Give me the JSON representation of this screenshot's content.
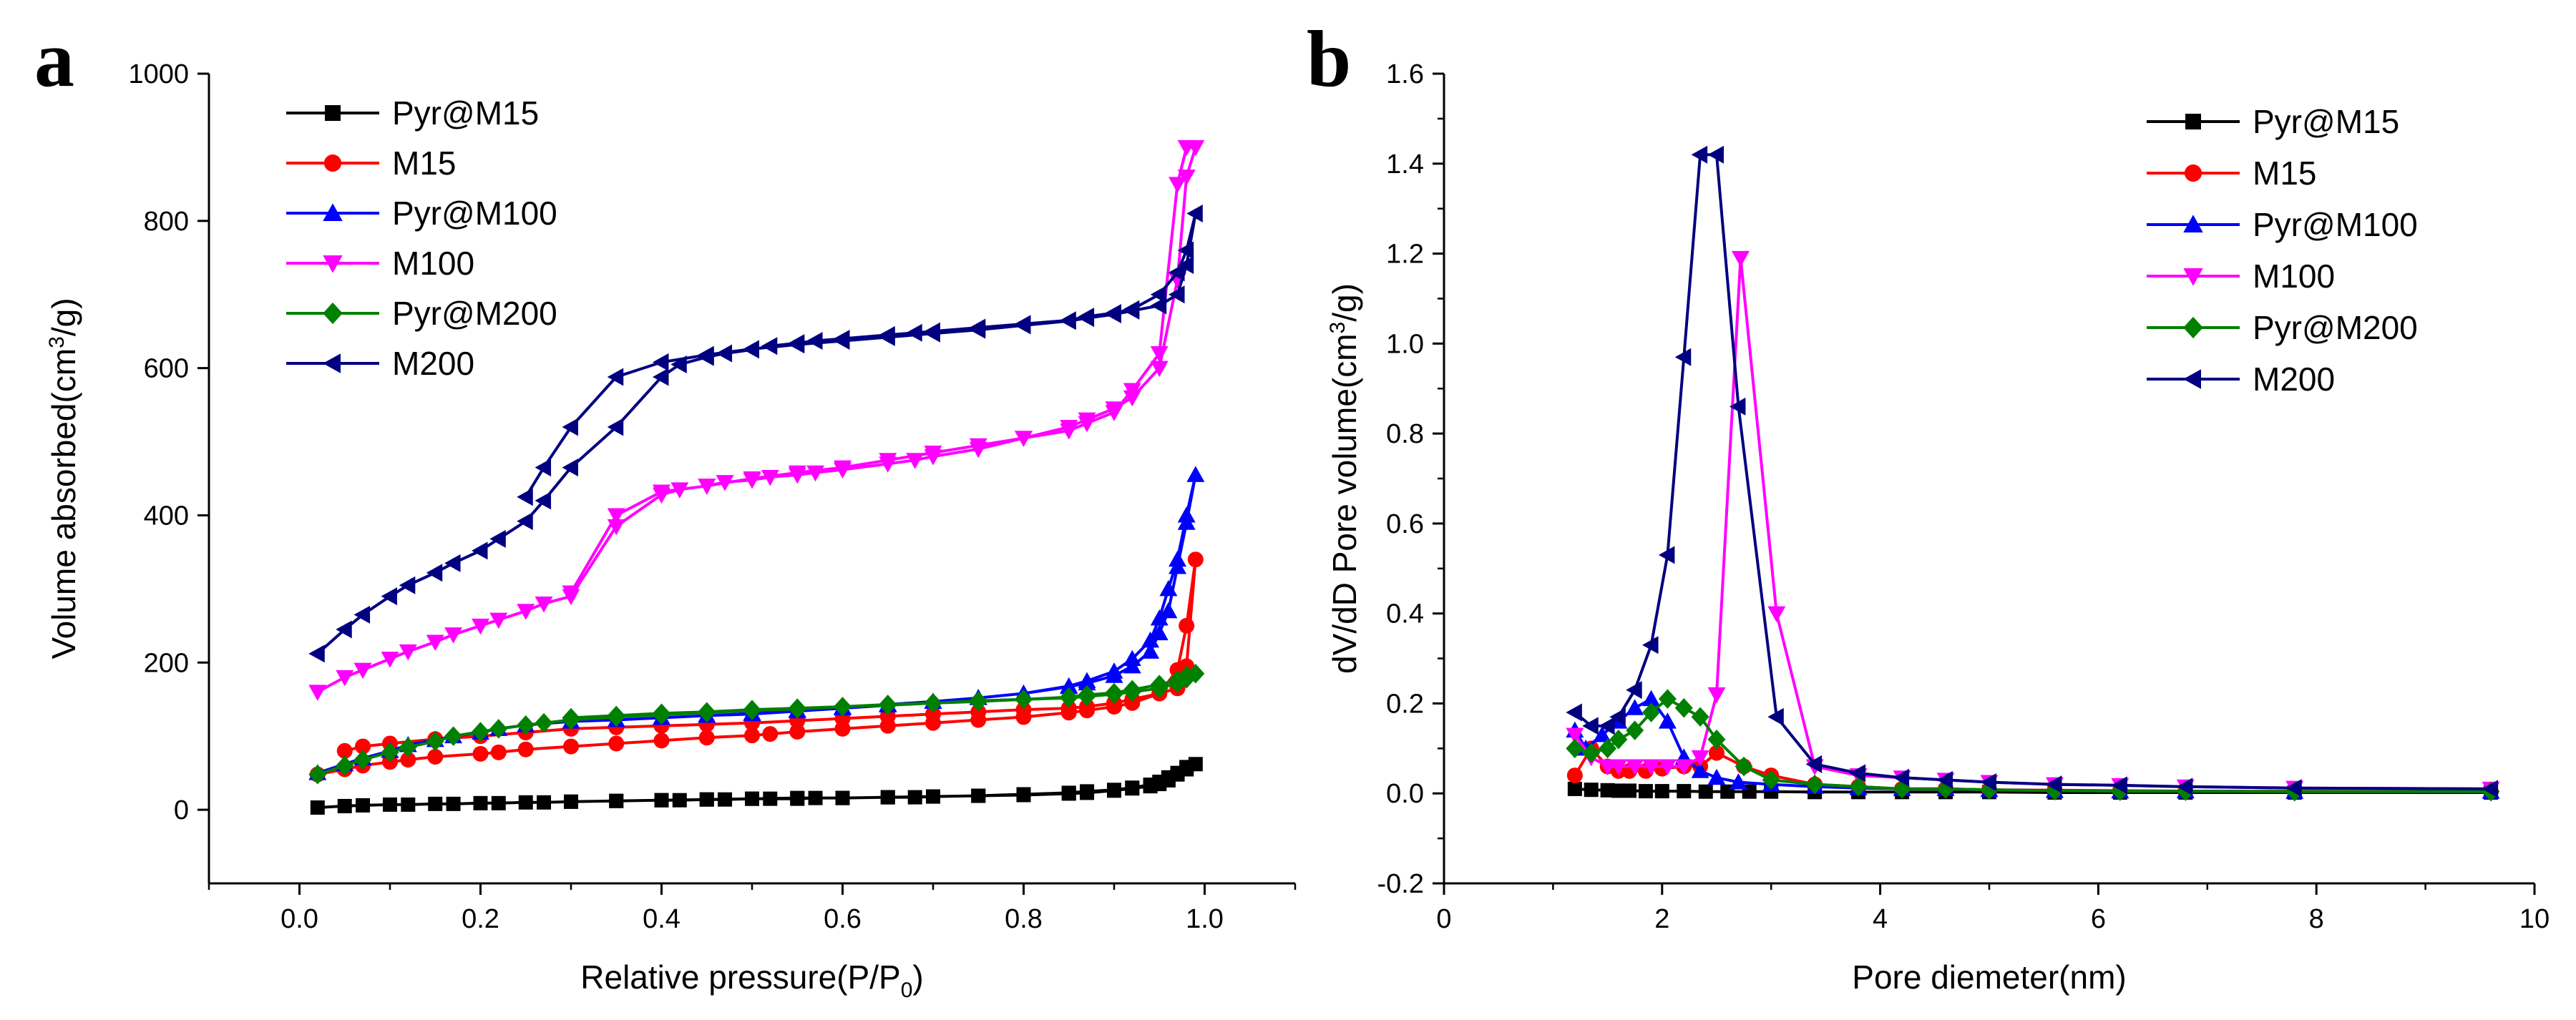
{
  "chart_data": [
    {
      "type": "line",
      "panel_label": "a",
      "title": "",
      "xlabel": "Relative pressure(P/P",
      "xlabel_sub": "0",
      "xlabel_tail": ")",
      "ylabel": "Volume absorbed(cm",
      "ylabel_sup": "3",
      "ylabel_tail": "/g)",
      "xlim": [
        -0.1,
        1.1
      ],
      "ylim": [
        -100,
        1000
      ],
      "xticks": [
        0.0,
        0.2,
        0.4,
        0.6,
        0.8,
        1.0
      ],
      "xtick_labels": [
        "0.0",
        "0.2",
        "0.4",
        "0.6",
        "0.8",
        "1.0"
      ],
      "yticks": [
        0,
        200,
        400,
        600,
        800,
        1000
      ],
      "ytick_labels": [
        "0",
        "200",
        "400",
        "600",
        "800",
        "1000"
      ],
      "legend_position": "top-left",
      "series": [
        {
          "name": "Pyr@M15",
          "color": "#000000",
          "marker": "square",
          "x": [
            0.02,
            0.05,
            0.07,
            0.1,
            0.12,
            0.15,
            0.17,
            0.2,
            0.22,
            0.25,
            0.27,
            0.3,
            0.35,
            0.4,
            0.42,
            0.45,
            0.47,
            0.5,
            0.52,
            0.55,
            0.57,
            0.6,
            0.65,
            0.68,
            0.7,
            0.75,
            0.8,
            0.85,
            0.87,
            0.9,
            0.92,
            0.94,
            0.95,
            0.96,
            0.97,
            0.98,
            0.99,
            0.98,
            0.97,
            0.96,
            0.95,
            0.94,
            0.92,
            0.9,
            0.87,
            0.85,
            0.8,
            0.75,
            0.7,
            0.65,
            0.6,
            0.55,
            0.5,
            0.45,
            0.4,
            0.35,
            0.3
          ],
          "y": [
            3,
            5,
            6,
            7,
            7,
            8,
            8,
            9,
            9,
            10,
            10,
            11,
            12,
            13,
            13,
            14,
            14,
            15,
            15,
            15,
            16,
            16,
            17,
            17,
            18,
            19,
            20,
            22,
            23,
            26,
            29,
            32,
            35,
            40,
            48,
            55,
            62,
            58,
            50,
            44,
            38,
            34,
            30,
            27,
            25,
            23,
            21,
            19,
            18,
            17,
            16,
            16,
            15,
            14,
            13,
            12,
            11
          ]
        },
        {
          "name": "M15",
          "color": "#ff0000",
          "marker": "circle",
          "x": [
            0.02,
            0.05,
            0.07,
            0.1,
            0.12,
            0.15,
            0.2,
            0.22,
            0.25,
            0.3,
            0.35,
            0.4,
            0.45,
            0.5,
            0.52,
            0.55,
            0.6,
            0.65,
            0.7,
            0.75,
            0.8,
            0.85,
            0.87,
            0.9,
            0.92,
            0.95,
            0.97,
            0.98,
            0.99,
            0.98,
            0.97,
            0.95,
            0.92,
            0.9,
            0.87,
            0.85,
            0.8,
            0.75,
            0.7,
            0.65,
            0.6,
            0.55,
            0.5,
            0.45,
            0.4,
            0.35,
            0.3,
            0.25,
            0.2,
            0.15,
            0.1,
            0.07,
            0.05
          ],
          "y": [
            48,
            55,
            60,
            65,
            68,
            72,
            76,
            78,
            82,
            86,
            90,
            94,
            98,
            101,
            103,
            106,
            110,
            114,
            118,
            122,
            126,
            132,
            135,
            140,
            145,
            158,
            190,
            250,
            340,
            195,
            165,
            158,
            150,
            145,
            140,
            138,
            136,
            133,
            130,
            127,
            124,
            121,
            118,
            116,
            114,
            112,
            110,
            105,
            100,
            96,
            90,
            86,
            80
          ]
        },
        {
          "name": "Pyr@M100",
          "color": "#0000ff",
          "marker": "triangle-up",
          "x": [
            0.02,
            0.05,
            0.07,
            0.1,
            0.12,
            0.15,
            0.17,
            0.2,
            0.22,
            0.25,
            0.3,
            0.35,
            0.4,
            0.45,
            0.5,
            0.55,
            0.6,
            0.65,
            0.7,
            0.75,
            0.8,
            0.85,
            0.87,
            0.9,
            0.92,
            0.94,
            0.95,
            0.96,
            0.97,
            0.98,
            0.99,
            0.98,
            0.97,
            0.96,
            0.95,
            0.94,
            0.92,
            0.9,
            0.87,
            0.85,
            0.8,
            0.75,
            0.7,
            0.65,
            0.6,
            0.55,
            0.5,
            0.45,
            0.4
          ],
          "y": [
            50,
            62,
            70,
            80,
            88,
            95,
            100,
            105,
            110,
            115,
            120,
            122,
            125,
            128,
            130,
            134,
            138,
            142,
            147,
            152,
            158,
            168,
            175,
            188,
            205,
            230,
            260,
            300,
            340,
            400,
            455,
            390,
            330,
            270,
            240,
            215,
            195,
            182,
            172,
            167,
            158,
            152,
            147,
            143,
            139,
            135,
            131,
            128,
            125
          ]
        },
        {
          "name": "M100",
          "color": "#ff00ff",
          "marker": "triangle-down",
          "x": [
            0.02,
            0.05,
            0.07,
            0.1,
            0.12,
            0.15,
            0.17,
            0.2,
            0.22,
            0.25,
            0.27,
            0.3,
            0.35,
            0.4,
            0.42,
            0.45,
            0.47,
            0.5,
            0.52,
            0.55,
            0.57,
            0.6,
            0.65,
            0.68,
            0.7,
            0.75,
            0.8,
            0.85,
            0.87,
            0.9,
            0.92,
            0.95,
            0.97,
            0.98,
            0.99,
            0.98,
            0.97,
            0.95,
            0.92,
            0.9,
            0.87,
            0.85,
            0.8,
            0.75,
            0.7,
            0.65,
            0.6,
            0.55,
            0.5,
            0.45,
            0.4,
            0.35,
            0.3
          ],
          "y": [
            160,
            180,
            190,
            205,
            215,
            228,
            238,
            250,
            258,
            270,
            280,
            290,
            385,
            428,
            435,
            440,
            445,
            448,
            452,
            455,
            458,
            462,
            470,
            475,
            480,
            490,
            505,
            520,
            530,
            545,
            560,
            600,
            720,
            860,
            900,
            900,
            850,
            620,
            570,
            540,
            525,
            515,
            505,
            495,
            485,
            475,
            465,
            458,
            450,
            440,
            432,
            400,
            295
          ]
        },
        {
          "name": "Pyr@M200",
          "color": "#008000",
          "marker": "diamond",
          "x": [
            0.02,
            0.05,
            0.07,
            0.1,
            0.12,
            0.15,
            0.17,
            0.2,
            0.22,
            0.25,
            0.27,
            0.3,
            0.35,
            0.4,
            0.45,
            0.5,
            0.55,
            0.6,
            0.65,
            0.7,
            0.75,
            0.8,
            0.85,
            0.87,
            0.9,
            0.92,
            0.95,
            0.97,
            0.98,
            0.99,
            0.98,
            0.97,
            0.95,
            0.92,
            0.9,
            0.87,
            0.85,
            0.8,
            0.75,
            0.7,
            0.65,
            0.6,
            0.55,
            0.5,
            0.45,
            0.4,
            0.35,
            0.3
          ],
          "y": [
            48,
            60,
            68,
            78,
            85,
            93,
            100,
            106,
            110,
            115,
            118,
            122,
            126,
            129,
            132,
            135,
            137,
            140,
            142,
            145,
            147,
            150,
            152,
            154,
            157,
            160,
            165,
            172,
            178,
            185,
            182,
            176,
            170,
            163,
            159,
            156,
            153,
            150,
            148,
            145,
            143,
            140,
            138,
            136,
            133,
            131,
            128,
            125
          ]
        },
        {
          "name": "M200",
          "color": "#000080",
          "marker": "triangle-left",
          "x": [
            0.02,
            0.05,
            0.07,
            0.1,
            0.12,
            0.15,
            0.17,
            0.2,
            0.22,
            0.25,
            0.27,
            0.3,
            0.35,
            0.4,
            0.42,
            0.45,
            0.47,
            0.5,
            0.52,
            0.55,
            0.57,
            0.6,
            0.65,
            0.68,
            0.7,
            0.75,
            0.8,
            0.85,
            0.87,
            0.9,
            0.92,
            0.95,
            0.97,
            0.98,
            0.99,
            0.98,
            0.97,
            0.95,
            0.92,
            0.9,
            0.87,
            0.85,
            0.8,
            0.75,
            0.7,
            0.65,
            0.6,
            0.55,
            0.5,
            0.45,
            0.4,
            0.35,
            0.3,
            0.27,
            0.25
          ],
          "y": [
            212,
            245,
            265,
            290,
            305,
            322,
            335,
            352,
            368,
            392,
            420,
            465,
            520,
            588,
            605,
            615,
            620,
            625,
            630,
            634,
            637,
            640,
            645,
            648,
            650,
            655,
            660,
            665,
            670,
            675,
            680,
            700,
            730,
            760,
            810,
            740,
            700,
            685,
            678,
            673,
            668,
            664,
            658,
            652,
            647,
            642,
            637,
            632,
            626,
            618,
            608,
            588,
            520,
            465,
            425
          ]
        }
      ]
    },
    {
      "type": "line",
      "panel_label": "b",
      "title": "",
      "xlabel": "Pore diemeter(nm)",
      "ylabel": "dV/dD Pore volume(cm",
      "ylabel_sup": "3",
      "ylabel_tail": "/g)",
      "xlim": [
        0,
        10
      ],
      "ylim": [
        -0.2,
        1.6
      ],
      "xticks": [
        0,
        2,
        4,
        6,
        8,
        10
      ],
      "xtick_labels": [
        "0",
        "2",
        "4",
        "6",
        "8",
        "10"
      ],
      "yticks": [
        -0.2,
        0.0,
        0.2,
        0.4,
        0.6,
        0.8,
        1.0,
        1.2,
        1.4,
        1.6
      ],
      "ytick_labels": [
        "-0.2",
        "0.0",
        "0.2",
        "0.4",
        "0.6",
        "0.8",
        "1.0",
        "1.2",
        "1.4",
        "1.6"
      ],
      "legend_position": "top-right",
      "series": [
        {
          "name": "Pyr@M15",
          "color": "#000000",
          "marker": "square",
          "x": [
            1.2,
            1.35,
            1.5,
            1.6,
            1.7,
            1.85,
            2.0,
            2.2,
            2.4,
            2.6,
            2.8,
            3.0,
            3.4,
            3.8,
            4.2,
            4.6,
            5.0,
            5.6,
            6.2,
            6.8,
            7.8,
            9.6
          ],
          "y": [
            0.01,
            0.008,
            0.007,
            0.006,
            0.006,
            0.005,
            0.005,
            0.005,
            0.004,
            0.004,
            0.004,
            0.004,
            0.003,
            0.003,
            0.003,
            0.003,
            0.003,
            0.002,
            0.002,
            0.002,
            0.002,
            0.002
          ]
        },
        {
          "name": "M15",
          "color": "#ff0000",
          "marker": "circle",
          "x": [
            1.2,
            1.35,
            1.5,
            1.6,
            1.7,
            1.85,
            2.0,
            2.2,
            2.35,
            2.5,
            2.75,
            3.0,
            3.4,
            3.8,
            4.2,
            4.6,
            5.0,
            5.6,
            6.2,
            6.8,
            7.8,
            9.6
          ],
          "y": [
            0.04,
            0.1,
            0.06,
            0.05,
            0.05,
            0.05,
            0.055,
            0.06,
            0.06,
            0.09,
            0.06,
            0.04,
            0.02,
            0.015,
            0.01,
            0.01,
            0.008,
            0.007,
            0.006,
            0.005,
            0.005,
            0.004
          ]
        },
        {
          "name": "Pyr@M100",
          "color": "#0000ff",
          "marker": "triangle-up",
          "x": [
            1.2,
            1.3,
            1.45,
            1.6,
            1.75,
            1.9,
            2.05,
            2.2,
            2.35,
            2.5,
            2.7,
            3.0,
            3.4,
            3.8,
            4.2,
            4.6,
            5.0,
            5.6,
            6.2,
            6.8,
            7.8,
            9.6
          ],
          "y": [
            0.14,
            0.1,
            0.13,
            0.16,
            0.19,
            0.21,
            0.16,
            0.08,
            0.05,
            0.035,
            0.025,
            0.02,
            0.015,
            0.012,
            0.01,
            0.01,
            0.008,
            0.006,
            0.005,
            0.005,
            0.004,
            0.004
          ]
        },
        {
          "name": "M100",
          "color": "#ff00ff",
          "marker": "triangle-down",
          "x": [
            1.2,
            1.35,
            1.5,
            1.6,
            1.75,
            1.9,
            2.05,
            2.2,
            2.35,
            2.5,
            2.72,
            3.05,
            3.4,
            3.8,
            4.2,
            4.6,
            5.0,
            5.6,
            6.2,
            6.8,
            7.8,
            9.6
          ],
          "y": [
            0.13,
            0.08,
            0.06,
            0.06,
            0.06,
            0.06,
            0.06,
            0.06,
            0.08,
            0.22,
            1.19,
            0.4,
            0.06,
            0.04,
            0.035,
            0.03,
            0.025,
            0.02,
            0.018,
            0.015,
            0.012,
            0.01
          ]
        },
        {
          "name": "Pyr@M200",
          "color": "#008000",
          "marker": "diamond",
          "x": [
            1.2,
            1.35,
            1.5,
            1.6,
            1.75,
            1.9,
            2.05,
            2.2,
            2.35,
            2.5,
            2.75,
            3.0,
            3.4,
            3.8,
            4.2,
            4.6,
            5.0,
            5.6,
            6.2,
            6.8,
            7.8,
            9.6
          ],
          "y": [
            0.1,
            0.09,
            0.1,
            0.12,
            0.14,
            0.18,
            0.21,
            0.19,
            0.17,
            0.12,
            0.06,
            0.03,
            0.02,
            0.015,
            0.01,
            0.01,
            0.008,
            0.006,
            0.005,
            0.005,
            0.004,
            0.004
          ]
        },
        {
          "name": "M200",
          "color": "#000080",
          "marker": "triangle-left",
          "x": [
            1.2,
            1.35,
            1.5,
            1.6,
            1.75,
            1.9,
            2.05,
            2.2,
            2.35,
            2.5,
            2.7,
            3.05,
            3.4,
            3.8,
            4.2,
            4.6,
            5.0,
            5.6,
            6.2,
            6.8,
            7.8,
            9.6
          ],
          "y": [
            0.18,
            0.15,
            0.15,
            0.17,
            0.23,
            0.33,
            0.53,
            0.97,
            1.42,
            1.42,
            0.86,
            0.17,
            0.065,
            0.045,
            0.035,
            0.03,
            0.025,
            0.02,
            0.018,
            0.015,
            0.012,
            0.01
          ]
        }
      ]
    }
  ]
}
